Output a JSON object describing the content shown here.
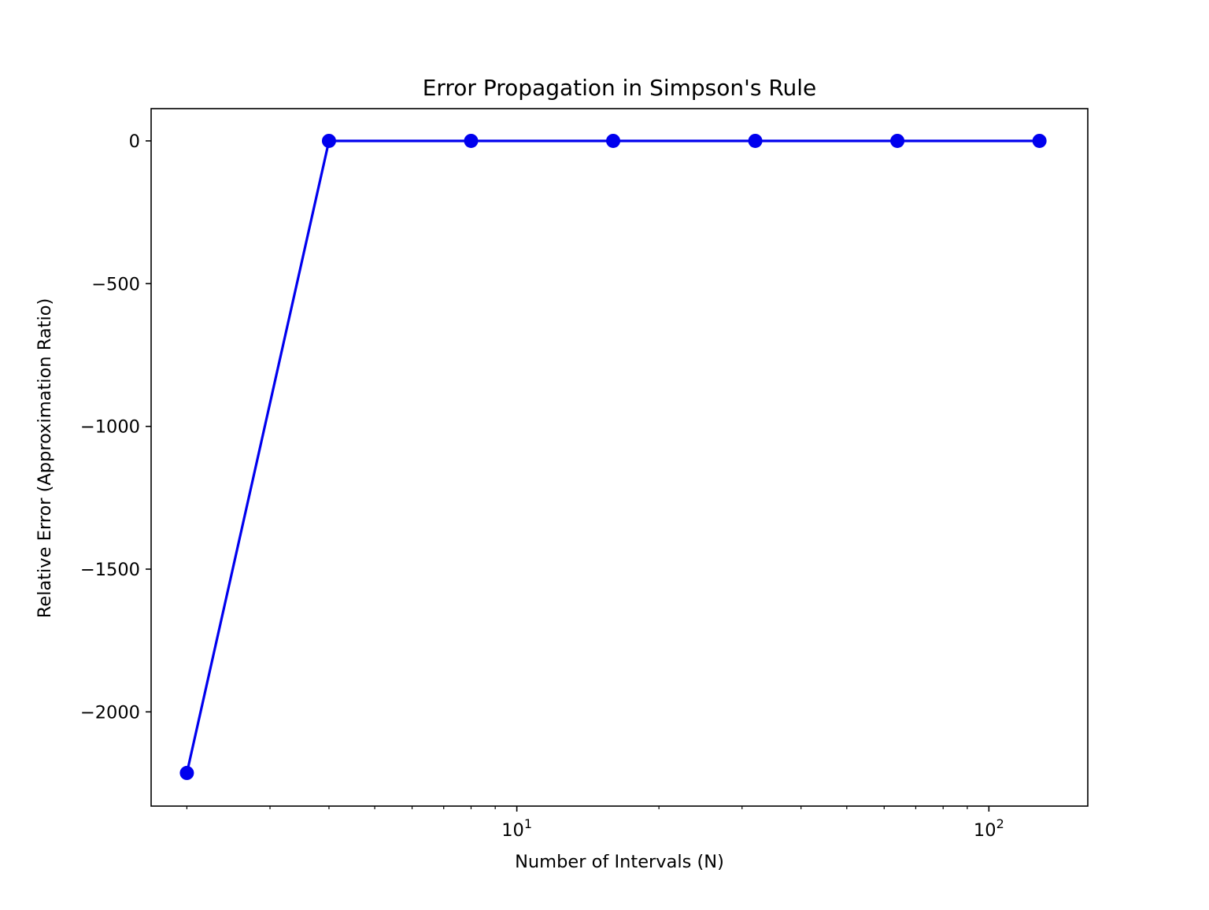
{
  "chart_data": {
    "type": "line",
    "title": "Error Propagation in Simpson's Rule",
    "xlabel": "Number of Intervals (N)",
    "ylabel": "Relative Error (Approximation Ratio)",
    "xscale": "log",
    "xlim": [
      1.68,
      162
    ],
    "ylim": [
      -2330,
      113
    ],
    "grid": false,
    "legend": "none",
    "colors": {
      "line": "#0000ee",
      "marker": "#0000ee",
      "axes": "#000000",
      "background": "#ffffff"
    },
    "x": [
      2,
      4,
      8,
      16,
      32,
      64,
      128
    ],
    "series": [
      {
        "values": [
          -2214,
          0,
          0,
          0,
          0,
          0,
          0
        ]
      }
    ],
    "x_major_ticks": [
      {
        "value": 10,
        "base": "10",
        "exp": "1"
      },
      {
        "value": 100,
        "base": "10",
        "exp": "2"
      }
    ],
    "x_minor_ticks": [
      2,
      3,
      4,
      5,
      6,
      7,
      8,
      9,
      20,
      30,
      40,
      50,
      60,
      70,
      80,
      90
    ],
    "y_ticks": [
      {
        "value": 0,
        "label": "0"
      },
      {
        "value": -500,
        "label": "−500"
      },
      {
        "value": -1000,
        "label": "−1000"
      },
      {
        "value": -1500,
        "label": "−1500"
      },
      {
        "value": -2000,
        "label": "−2000"
      }
    ]
  }
}
